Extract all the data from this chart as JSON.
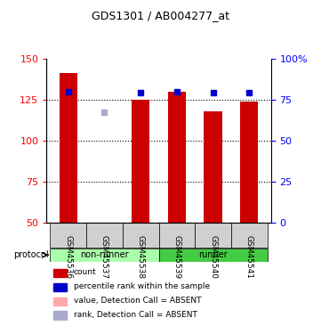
{
  "title": "GDS1301 / AB004277_at",
  "samples": [
    "GSM45536",
    "GSM45537",
    "GSM45538",
    "GSM45539",
    "GSM45540",
    "GSM45541"
  ],
  "bar_values": [
    141,
    0,
    125,
    130,
    118,
    124
  ],
  "bar_colors": [
    "#cc0000",
    "#ffaaaa",
    "#cc0000",
    "#cc0000",
    "#cc0000",
    "#cc0000"
  ],
  "rank_values": [
    130,
    null,
    129,
    130,
    129,
    129
  ],
  "rank_absent": [
    null,
    117,
    null,
    null,
    null,
    null
  ],
  "ylim_left": [
    50,
    150
  ],
  "ylim_right": [
    0,
    100
  ],
  "yticks_left": [
    50,
    75,
    100,
    125,
    150
  ],
  "yticks_right": [
    0,
    25,
    50,
    75,
    100
  ],
  "grid_lines": [
    75,
    100,
    125
  ],
  "protocol_groups": [
    {
      "label": "non-runner",
      "start": 0,
      "end": 3,
      "color": "#aaffaa"
    },
    {
      "label": "runner",
      "start": 3,
      "end": 6,
      "color": "#44cc44"
    }
  ],
  "protocol_label": "protocol",
  "legend_items": [
    {
      "color": "#cc0000",
      "label": "count",
      "marker": "s"
    },
    {
      "color": "#0000cc",
      "label": "percentile rank within the sample",
      "marker": "s"
    },
    {
      "color": "#ffaaaa",
      "label": "value, Detection Call = ABSENT",
      "marker": "s"
    },
    {
      "color": "#aaaadd",
      "label": "rank, Detection Call = ABSENT",
      "marker": "s"
    }
  ],
  "bar_width": 0.5,
  "base_value": 50
}
